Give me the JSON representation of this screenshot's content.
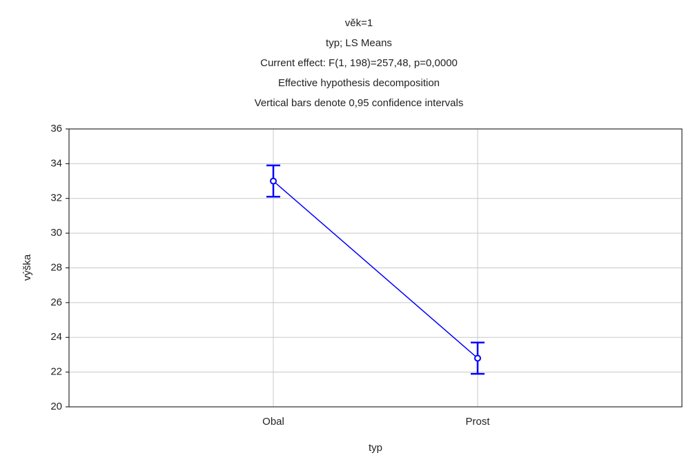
{
  "chart_data": {
    "type": "line",
    "title_lines": [
      "věk=1",
      "typ; LS Means",
      "Current effect: F(1, 198)=257,48, p=0,0000",
      "Effective hypothesis decomposition",
      "Vertical bars denote 0,95 confidence intervals"
    ],
    "x_label": "typ",
    "y_label": "výška",
    "categories": [
      "Obal",
      "Prost"
    ],
    "values": [
      33.0,
      22.8
    ],
    "errors": [
      0.9,
      0.9
    ],
    "color": "#0000ff",
    "ylim": [
      20,
      36
    ],
    "yticks": [
      20,
      22,
      24,
      26,
      28,
      30,
      32,
      34,
      36
    ],
    "grid": true
  }
}
